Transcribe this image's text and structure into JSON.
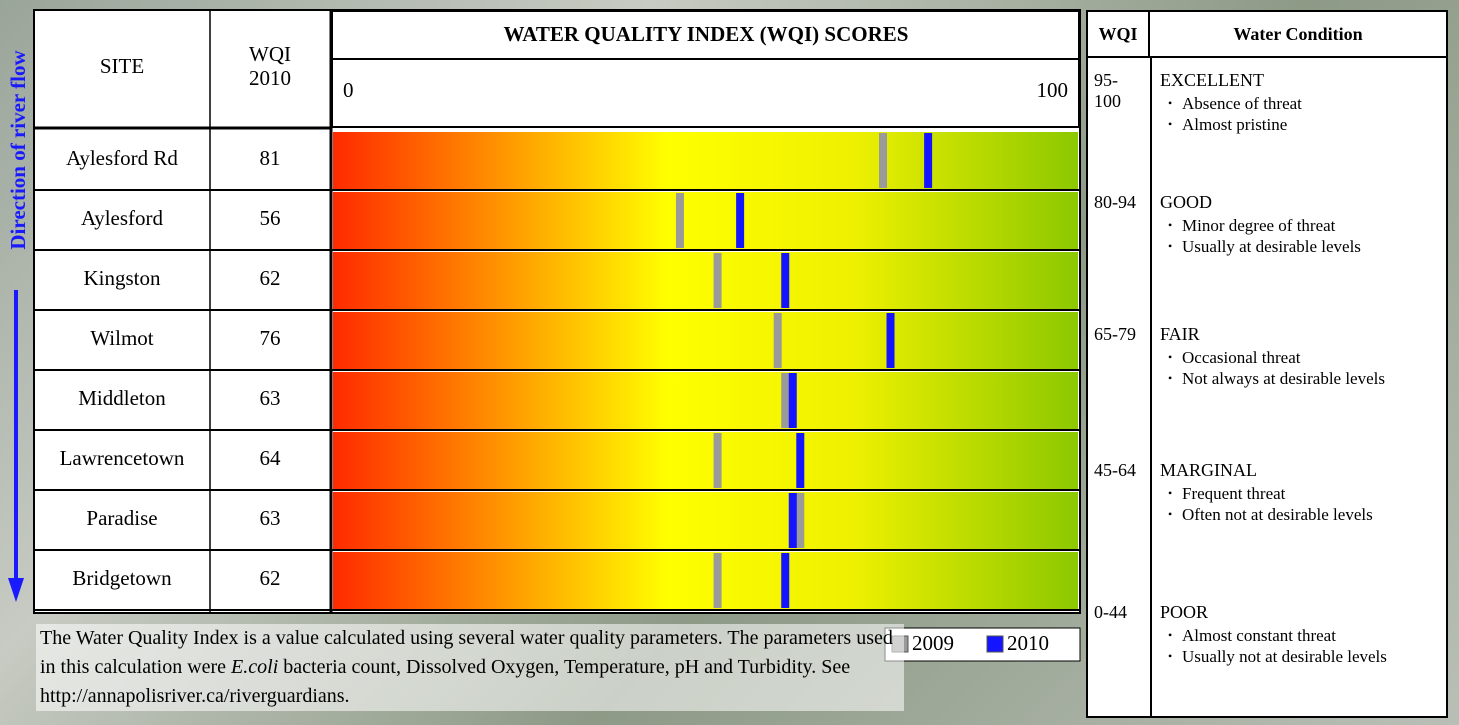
{
  "side_label": "Direction of river flow",
  "chart_data": {
    "type": "bar",
    "title": "WATER QUALITY INDEX (WQI) SCORES",
    "column_headers": [
      "SITE",
      "WQI 2010"
    ],
    "categories": [
      "Aylesford Rd",
      "Aylesford",
      "Kingston",
      "Wilmot",
      "Middleton",
      "Lawrencetown",
      "Paradise",
      "Bridgetown"
    ],
    "series": [
      {
        "name": "2009",
        "color": "#9a9a9a",
        "values": [
          75,
          48,
          53,
          61,
          62,
          53,
          64,
          53
        ]
      },
      {
        "name": "2010",
        "color": "#1414ff",
        "values": [
          81,
          56,
          62,
          76,
          63,
          64,
          63,
          62
        ]
      }
    ],
    "xlim": [
      0,
      100
    ],
    "xticks": [
      0,
      100
    ]
  },
  "footnote": {
    "parts": [
      "The Water Quality Index is a value calculated using several water quality parameters. The parameters used in this calculation were ",
      "E.coli",
      " bacteria count, Dissolved Oxygen, Temperature, pH and Turbidity. See http://annapolisriver.ca/riverguardians."
    ]
  },
  "legend_table": {
    "headers": [
      "WQI",
      "Water Condition"
    ],
    "rows": [
      {
        "range": "95-100",
        "condition": "EXCELLENT",
        "notes": [
          "Absence of threat",
          "Almost pristine"
        ]
      },
      {
        "range": "80-94",
        "condition": "GOOD",
        "notes": [
          "Minor degree of threat",
          "Usually at desirable levels"
        ]
      },
      {
        "range": "65-79",
        "condition": "FAIR",
        "notes": [
          "Occasional threat",
          "Not always at desirable levels"
        ]
      },
      {
        "range": "45-64",
        "condition": "MARGINAL",
        "notes": [
          "Frequent threat",
          "Often not at desirable levels"
        ]
      },
      {
        "range": "0-44",
        "condition": "POOR",
        "notes": [
          "Almost constant threat",
          "Usually not at desirable levels"
        ]
      }
    ]
  }
}
